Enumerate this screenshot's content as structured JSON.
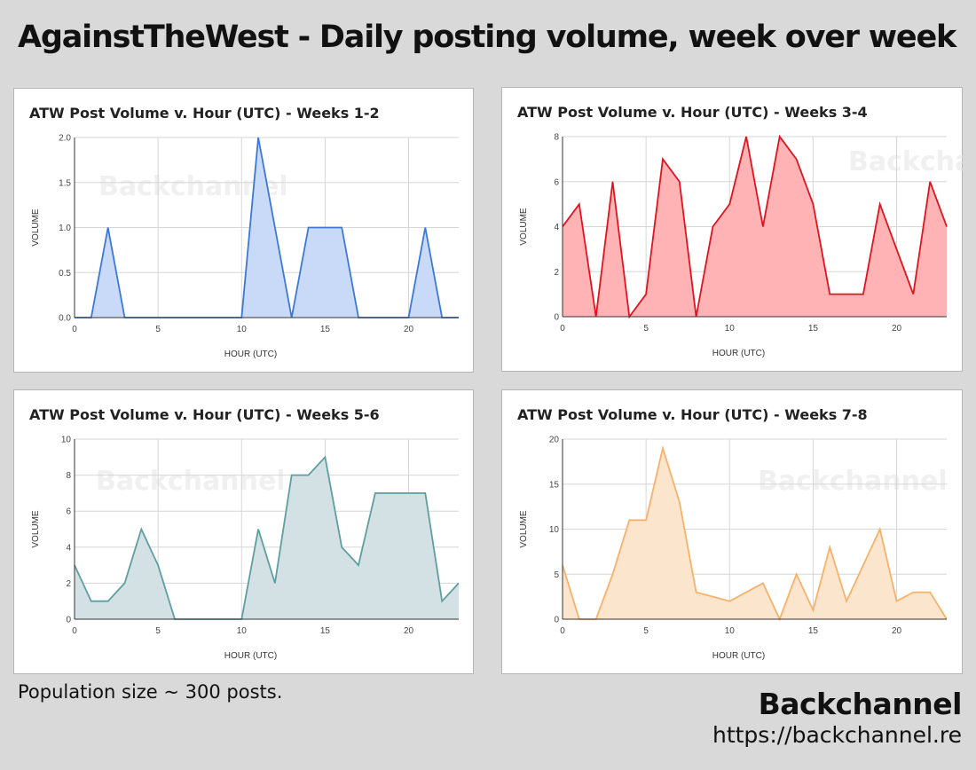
{
  "page": {
    "title": "AgainstTheWest - Daily posting volume, week over week",
    "footnote": "Population size ~ 300 posts.",
    "brand": "Backchannel",
    "brand_url": "https://backchannel.re"
  },
  "chart_data": [
    {
      "type": "area",
      "title": "ATW Post Volume v. Hour (UTC) - Weeks 1-2",
      "xlabel": "HOUR (UTC)",
      "ylabel": "VOLUME",
      "watermark": "Backchannel",
      "xlim": [
        0,
        23
      ],
      "ylim": [
        0,
        2
      ],
      "xticks": [
        0,
        5,
        10,
        15,
        20
      ],
      "xtick_labels": [
        "0",
        "5",
        "10",
        "15",
        "20"
      ],
      "yticks": [
        0,
        0.5,
        1,
        1.5,
        2
      ],
      "ytick_labels": [
        "0.0",
        "0.5",
        "1.0",
        "1.5",
        "2.0"
      ],
      "grid": true,
      "colors": {
        "line": "#3c78d8",
        "fill": "#c9daf8"
      },
      "series": [
        {
          "x": [
            0,
            1,
            2,
            3,
            4,
            5,
            6,
            7,
            8,
            9,
            10,
            11,
            12,
            13,
            14,
            15,
            16,
            17,
            18,
            19,
            20,
            21,
            22,
            23
          ],
          "values": [
            0,
            0,
            1,
            0,
            0,
            0,
            0,
            0,
            0,
            0,
            0,
            2,
            1,
            0,
            1,
            1,
            1,
            0,
            0,
            0,
            0,
            1,
            0,
            0
          ]
        }
      ]
    },
    {
      "type": "area",
      "title": "ATW Post Volume v. Hour (UTC) - Weeks 3-4",
      "xlabel": "HOUR (UTC)",
      "ylabel": "VOLUME",
      "watermark": "Backchannel",
      "xlim": [
        0,
        23
      ],
      "ylim": [
        0,
        8
      ],
      "xticks": [
        0,
        5,
        10,
        15,
        20
      ],
      "xtick_labels": [
        "0",
        "5",
        "10",
        "15",
        "20"
      ],
      "yticks": [
        0,
        2,
        4,
        6,
        8
      ],
      "ytick_labels": [
        "0",
        "2",
        "4",
        "6",
        "8"
      ],
      "grid": true,
      "colors": {
        "line": "#e0141e",
        "fill": "#ffb3b5"
      },
      "series": [
        {
          "x": [
            0,
            1,
            2,
            3,
            4,
            5,
            6,
            7,
            8,
            9,
            10,
            11,
            12,
            13,
            14,
            15,
            16,
            17,
            18,
            19,
            20,
            21,
            22,
            23
          ],
          "values": [
            4,
            5,
            0,
            6,
            0,
            1,
            7,
            6,
            0,
            4,
            5,
            8,
            4,
            8,
            7,
            5,
            1,
            1,
            1,
            5,
            3,
            1,
            6,
            4
          ]
        }
      ]
    },
    {
      "type": "area",
      "title": "ATW Post Volume v. Hour (UTC) - Weeks 5-6",
      "xlabel": "HOUR (UTC)",
      "ylabel": "VOLUME",
      "watermark": "Backchannel",
      "xlim": [
        0,
        23
      ],
      "ylim": [
        0,
        10
      ],
      "xticks": [
        0,
        5,
        10,
        15,
        20
      ],
      "xtick_labels": [
        "0",
        "5",
        "10",
        "15",
        "20"
      ],
      "yticks": [
        0,
        2,
        4,
        6,
        8,
        10
      ],
      "ytick_labels": [
        "0",
        "2",
        "4",
        "6",
        "8",
        "10"
      ],
      "grid": true,
      "colors": {
        "line": "#5f9ea0",
        "fill": "#d3e1e5"
      },
      "series": [
        {
          "x": [
            0,
            1,
            2,
            3,
            4,
            5,
            6,
            7,
            8,
            9,
            10,
            11,
            12,
            13,
            14,
            15,
            16,
            17,
            18,
            19,
            20,
            21,
            22,
            23
          ],
          "values": [
            3,
            1,
            1,
            2,
            5,
            3,
            0,
            0,
            0,
            0,
            0,
            5,
            2,
            8,
            8,
            9,
            4,
            3,
            7,
            7,
            7,
            7,
            1,
            2
          ]
        }
      ]
    },
    {
      "type": "area",
      "title": "ATW Post Volume v. Hour (UTC) - Weeks 7-8",
      "xlabel": "HOUR (UTC)",
      "ylabel": "VOLUME",
      "watermark": "Backchannel",
      "xlim": [
        0,
        23
      ],
      "ylim": [
        0,
        20
      ],
      "xticks": [
        0,
        5,
        10,
        15,
        20
      ],
      "xtick_labels": [
        "0",
        "5",
        "10",
        "15",
        "20"
      ],
      "yticks": [
        0,
        5,
        10,
        15,
        20
      ],
      "ytick_labels": [
        "0",
        "5",
        "10",
        "15",
        "20"
      ],
      "grid": true,
      "colors": {
        "line": "#f6b26b",
        "fill": "#fce5cd"
      },
      "series": [
        {
          "x": [
            0,
            1,
            2,
            3,
            4,
            5,
            6,
            7,
            8,
            9,
            10,
            11,
            12,
            13,
            14,
            15,
            16,
            17,
            18,
            19,
            20,
            21,
            22,
            23
          ],
          "values": [
            6,
            0,
            0,
            5,
            11,
            11,
            19,
            13,
            3,
            2.5,
            2,
            3,
            4,
            0,
            5,
            1,
            8,
            2,
            6,
            10,
            2,
            3,
            3,
            0
          ]
        }
      ]
    }
  ]
}
